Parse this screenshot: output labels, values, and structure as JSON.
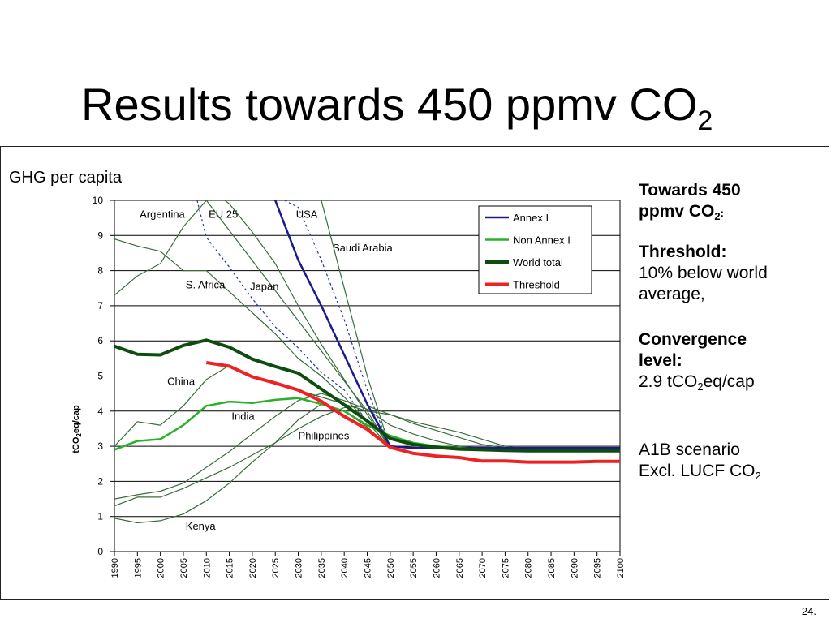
{
  "slide": {
    "title_main": "Results towards 450 ppmv CO",
    "title_sub": "2",
    "number": "24."
  },
  "notes": {
    "towards_line1": "Towards 450",
    "towards_line2": "ppmv CO",
    "towards_sub": "2",
    "towards_end": ":",
    "threshold_head": "Threshold:",
    "threshold_line1": "10% below world",
    "threshold_line2": "average,",
    "convergence_head1": "Convergence",
    "convergence_head2": "level:",
    "convergence_val_a": "2.9 tCO",
    "convergence_val_sub": "2",
    "convergence_val_b": "eq/cap",
    "scenario": "A1B scenario",
    "lucf_a": "Excl. LUCF CO",
    "lucf_sub": "2"
  },
  "chart_data": {
    "type": "line",
    "title": "GHG per capita",
    "ylabel_parts": [
      "tCO",
      "2",
      "eq/cap"
    ],
    "xlim": [
      1990,
      2100
    ],
    "ylim": [
      0,
      10
    ],
    "x_ticks": [
      1990,
      1995,
      2000,
      2005,
      2010,
      2015,
      2020,
      2025,
      2030,
      2035,
      2040,
      2045,
      2050,
      2055,
      2060,
      2065,
      2070,
      2075,
      2080,
      2085,
      2090,
      2095,
      2100
    ],
    "y_ticks": [
      0,
      1,
      2,
      3,
      4,
      5,
      6,
      7,
      8,
      9,
      10
    ],
    "grid": "horizontal",
    "legend_position": "top-right",
    "series": [
      {
        "name": "Annex I",
        "color": "#1a1a8c",
        "width": 2.5,
        "legend": true,
        "x": [
          2025,
          2030,
          2035,
          2040,
          2045,
          2050,
          2055,
          2060,
          2065,
          2070,
          2075,
          2080,
          2085,
          2090,
          2095,
          2100
        ],
        "y": [
          10.0,
          8.3,
          7.0,
          5.6,
          4.2,
          3.0,
          2.95,
          2.95,
          2.95,
          2.95,
          2.95,
          2.95,
          2.95,
          2.95,
          2.95,
          2.95
        ]
      },
      {
        "name": "Non Annex I",
        "color": "#2bb02b",
        "width": 2.5,
        "legend": true,
        "x": [
          1990,
          1995,
          2000,
          2005,
          2010,
          2015,
          2020,
          2025,
          2030,
          2035,
          2040,
          2045,
          2050,
          2055,
          2060,
          2065,
          2070,
          2075,
          2080,
          2085,
          2090,
          2095,
          2100
        ],
        "y": [
          2.9,
          3.15,
          3.2,
          3.6,
          4.15,
          4.27,
          4.23,
          4.32,
          4.37,
          4.2,
          4.0,
          3.6,
          3.3,
          3.1,
          3.0,
          2.95,
          2.9,
          2.88,
          2.88,
          2.88,
          2.88,
          2.88,
          2.88
        ]
      },
      {
        "name": "World total",
        "color": "#0f4d0f",
        "width": 4,
        "legend": true,
        "x": [
          1990,
          1995,
          2000,
          2005,
          2010,
          2015,
          2020,
          2025,
          2030,
          2035,
          2040,
          2045,
          2050,
          2055,
          2060,
          2065,
          2070,
          2075,
          2080,
          2085,
          2090,
          2095,
          2100
        ],
        "y": [
          5.85,
          5.62,
          5.6,
          5.87,
          6.02,
          5.82,
          5.48,
          5.27,
          5.08,
          4.63,
          4.18,
          3.72,
          3.22,
          3.05,
          2.97,
          2.92,
          2.9,
          2.88,
          2.87,
          2.87,
          2.87,
          2.87,
          2.87
        ]
      },
      {
        "name": "Threshold",
        "color": "#ee2222",
        "width": 4,
        "legend": true,
        "x": [
          2010,
          2015,
          2020,
          2025,
          2030,
          2035,
          2040,
          2045,
          2050,
          2055,
          2060,
          2065,
          2070,
          2075,
          2080,
          2085,
          2090,
          2095,
          2100
        ],
        "y": [
          5.38,
          5.28,
          4.98,
          4.8,
          4.6,
          4.28,
          3.85,
          3.48,
          2.97,
          2.8,
          2.72,
          2.68,
          2.58,
          2.58,
          2.55,
          2.55,
          2.55,
          2.57,
          2.57
        ]
      },
      {
        "name": "Argentina",
        "color": "#3a6e3a",
        "width": 1.2,
        "legend": false,
        "x": [
          1990,
          1995,
          2000,
          2005,
          2010,
          2045,
          2050
        ],
        "y": [
          7.3,
          7.85,
          8.2,
          9.25,
          10.0,
          4.0,
          2.95
        ]
      },
      {
        "name": "EU 25",
        "color": "#2233aa",
        "width": 1.2,
        "dash": "3,3",
        "legend": false,
        "x": [
          2008,
          2010,
          2015,
          2020,
          2025,
          2030,
          2035,
          2040,
          2045,
          2050
        ],
        "y": [
          10.0,
          8.95,
          8.1,
          7.2,
          6.4,
          5.8,
          5.1,
          4.6,
          3.7,
          2.95
        ]
      },
      {
        "name": "USA",
        "color": "#2233aa",
        "width": 1.2,
        "dash": "3,3",
        "legend": false,
        "x": [
          2027,
          2030,
          2035,
          2040,
          2045,
          2050
        ],
        "y": [
          10.0,
          9.8,
          8.3,
          6.6,
          4.6,
          2.95
        ]
      },
      {
        "name": "Saudi Arabia",
        "color": "#3a6e3a",
        "width": 1.2,
        "legend": false,
        "x": [
          2035,
          2040,
          2045,
          2050
        ],
        "y": [
          10.0,
          7.5,
          5.0,
          2.95
        ]
      },
      {
        "name": "S. Africa",
        "color": "#3a6e3a",
        "width": 1.2,
        "legend": false,
        "x": [
          1990,
          1995,
          2000,
          2005,
          2010,
          2015,
          2020,
          2025,
          2030,
          2035,
          2040,
          2045,
          2050
        ],
        "y": [
          8.9,
          8.7,
          8.55,
          8.0,
          8.0,
          7.4,
          6.8,
          6.2,
          5.5,
          5.0,
          4.4,
          3.7,
          2.95
        ]
      },
      {
        "name": "Japan",
        "color": "#3a6e3a",
        "width": 1.2,
        "legend": false,
        "x": [
          2014,
          2015,
          2020,
          2025,
          2030,
          2035,
          2040,
          2045,
          2050
        ],
        "y": [
          10.0,
          9.9,
          9.1,
          8.2,
          7.0,
          5.9,
          4.9,
          3.9,
          2.95
        ]
      },
      {
        "name": "China",
        "color": "#3a6e3a",
        "width": 1.2,
        "legend": false,
        "x": [
          1990,
          1995,
          2000,
          2005,
          2010,
          2015,
          2020,
          2025,
          2030,
          2035,
          2040,
          2045,
          2050,
          2055,
          2060,
          2065,
          2070,
          2075,
          2080
        ],
        "y": [
          3.0,
          3.7,
          3.6,
          4.15,
          4.9,
          5.3,
          5.0,
          4.8,
          4.6,
          4.4,
          4.2,
          4.0,
          3.9,
          3.7,
          3.55,
          3.4,
          3.2,
          3.0,
          2.9
        ]
      },
      {
        "name": "India",
        "color": "#3a6e3a",
        "width": 1.2,
        "legend": false,
        "x": [
          1990,
          1995,
          2000,
          2005,
          2010,
          2015,
          2020,
          2025,
          2030,
          2035,
          2040,
          2045,
          2050,
          2055,
          2060,
          2065,
          2070,
          2075,
          2080
        ],
        "y": [
          1.3,
          1.55,
          1.55,
          1.8,
          2.1,
          2.4,
          2.75,
          3.1,
          3.5,
          3.85,
          4.1,
          4.15,
          3.9,
          3.65,
          3.45,
          3.25,
          3.05,
          2.95,
          2.9
        ]
      },
      {
        "name": "Philippines",
        "color": "#3a6e3a",
        "width": 1.2,
        "legend": false,
        "x": [
          1990,
          1995,
          2000,
          2005,
          2010,
          2015,
          2020,
          2025,
          2030,
          2035,
          2040,
          2045,
          2050,
          2055,
          2060,
          2065,
          2070,
          2075,
          2080
        ],
        "y": [
          1.5,
          1.62,
          1.72,
          1.95,
          2.4,
          2.85,
          3.35,
          3.85,
          4.3,
          4.5,
          4.3,
          4.05,
          3.6,
          3.35,
          3.15,
          3.0,
          2.95,
          2.9,
          2.88
        ]
      },
      {
        "name": "Kenya",
        "color": "#3a6e3a",
        "width": 1.2,
        "legend": false,
        "x": [
          1990,
          1995,
          2000,
          2005,
          2010,
          2015,
          2020,
          2025,
          2030,
          2035,
          2040,
          2045,
          2050
        ],
        "y": [
          0.95,
          0.82,
          0.88,
          1.07,
          1.45,
          1.95,
          2.55,
          3.1,
          3.75,
          4.2,
          4.0,
          3.55,
          2.95
        ]
      }
    ],
    "annotations": [
      {
        "text": "Argentina",
        "x": 1995.5,
        "y": 9.5
      },
      {
        "text": "EU 25",
        "x": 2010.5,
        "y": 9.5
      },
      {
        "text": "USA",
        "x": 2029.5,
        "y": 9.5
      },
      {
        "text": "Saudi Arabia",
        "x": 2037.5,
        "y": 8.55
      },
      {
        "text": "S. Africa",
        "x": 2005.5,
        "y": 7.5
      },
      {
        "text": "Japan",
        "x": 2019.5,
        "y": 7.45
      },
      {
        "text": "China",
        "x": 2001.5,
        "y": 4.75
      },
      {
        "text": "India",
        "x": 2015.5,
        "y": 3.75
      },
      {
        "text": "Philippines",
        "x": 2030.0,
        "y": 3.2
      },
      {
        "text": "Kenya",
        "x": 2005.5,
        "y": 0.62
      }
    ]
  }
}
